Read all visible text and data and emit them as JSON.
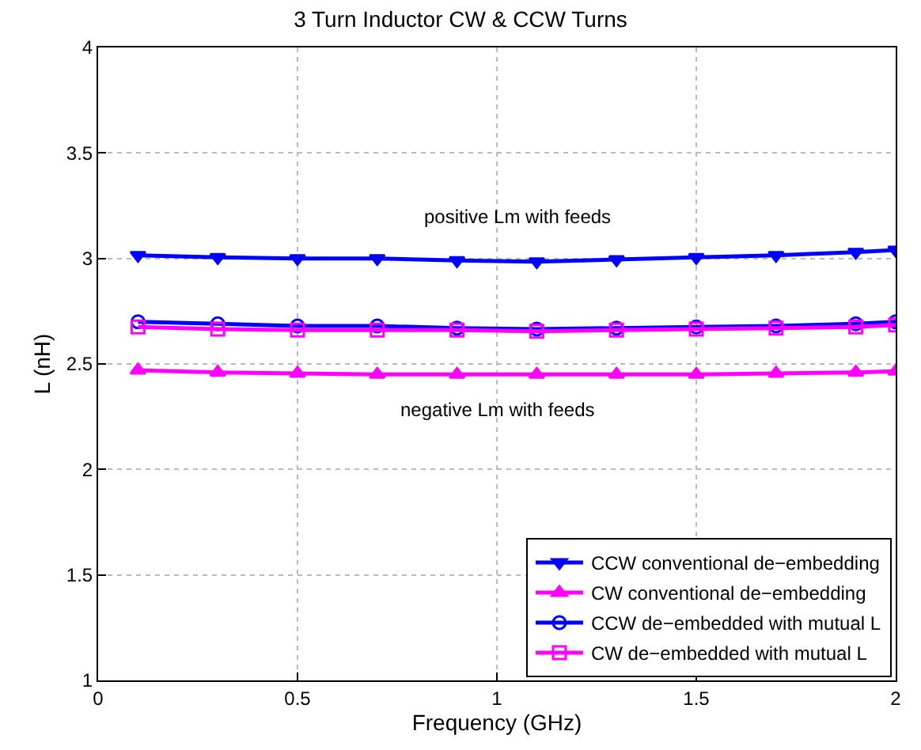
{
  "chart_data": {
    "type": "line",
    "title": "3 Turn Inductor CW & CCW Turns",
    "xlabel": "Frequency (GHz)",
    "ylabel": "L (nH)",
    "x": [
      0.1,
      0.3,
      0.5,
      0.7,
      0.9,
      1.1,
      1.3,
      1.5,
      1.7,
      1.9,
      2.0
    ],
    "series": [
      {
        "name": "CCW conventional de−embedding",
        "color": "#0000ff",
        "marker": "triangle-down",
        "values": [
          3.015,
          3.005,
          3.0,
          3.0,
          2.99,
          2.985,
          2.995,
          3.005,
          3.015,
          3.03,
          3.04
        ]
      },
      {
        "name": "CW conventional de−embedding",
        "color": "#ff00ff",
        "marker": "triangle",
        "values": [
          2.47,
          2.46,
          2.455,
          2.45,
          2.45,
          2.45,
          2.45,
          2.45,
          2.455,
          2.46,
          2.465
        ]
      },
      {
        "name": "CCW de−embedded with mutual L",
        "color": "#0000ff",
        "marker": "circle",
        "values": [
          2.7,
          2.69,
          2.68,
          2.68,
          2.67,
          2.665,
          2.67,
          2.675,
          2.68,
          2.69,
          2.7
        ]
      },
      {
        "name": "CW de−embedded with mutual L",
        "color": "#ff00ff",
        "marker": "square",
        "values": [
          2.675,
          2.665,
          2.66,
          2.66,
          2.66,
          2.655,
          2.66,
          2.665,
          2.67,
          2.675,
          2.685
        ]
      }
    ],
    "xlim": [
      0,
      2
    ],
    "xticks": [
      0,
      0.5,
      1,
      1.5,
      2
    ],
    "ylim": [
      1,
      4
    ],
    "yticks": [
      1,
      1.5,
      2,
      2.5,
      3,
      3.5,
      4
    ],
    "grid": true,
    "legend": "bottom right",
    "line_style": "solid",
    "annotations": [
      "positive Lm with feeds",
      "negative Lm with feeds"
    ]
  }
}
